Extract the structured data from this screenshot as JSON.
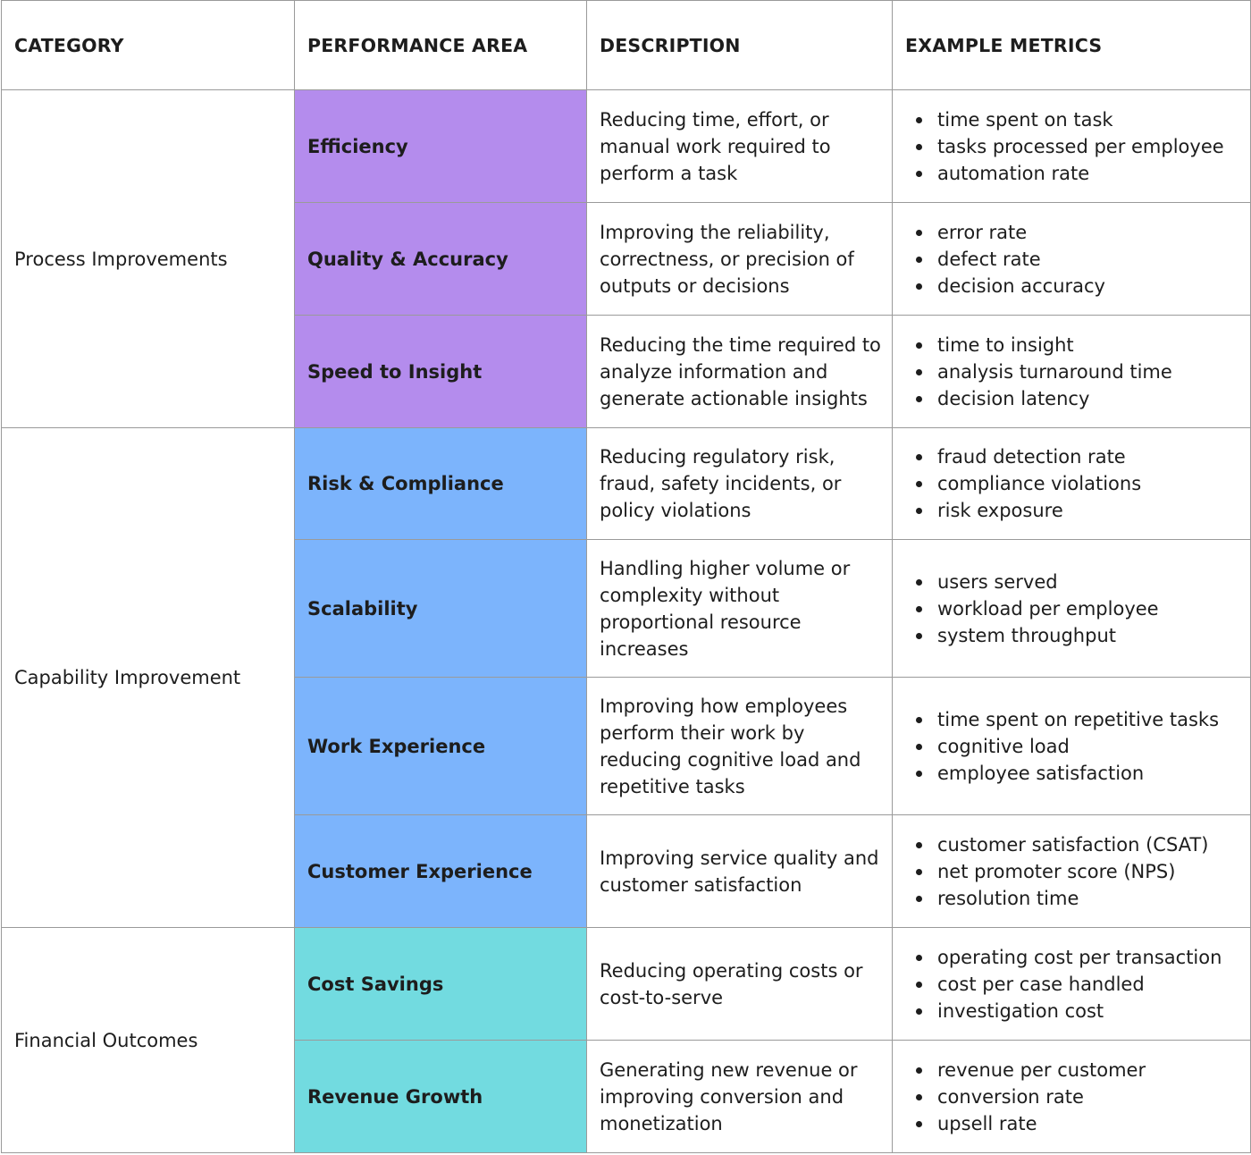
{
  "table": {
    "headers": [
      "CATEGORY",
      "PERFORMANCE AREA",
      "DESCRIPTION",
      "EXAMPLE METRICS"
    ],
    "colors": {
      "process": "#b48ced",
      "capability": "#7cb4fc",
      "financial": "#72dbe0",
      "border": "#9a9a9a"
    },
    "groups": [
      {
        "category": "Process Improvements",
        "rows": [
          {
            "area": "Efficiency",
            "description": "Reducing time, effort, or manual work required to perform a task",
            "metrics": [
              "time spent on task",
              "tasks processed per employee",
              "automation rate"
            ]
          },
          {
            "area": "Quality & Accuracy",
            "description": "Improving the reliability, correctness, or precision of outputs or decisions",
            "metrics": [
              "error rate",
              "defect rate",
              "decision accuracy"
            ]
          },
          {
            "area": "Speed to Insight",
            "description": "Reducing the time required to analyze information and generate actionable insights",
            "metrics": [
              "time to insight",
              "analysis turnaround time",
              "decision latency"
            ]
          }
        ]
      },
      {
        "category": "Capability Improvement",
        "rows": [
          {
            "area": "Risk & Compliance",
            "description": "Reducing regulatory risk, fraud, safety incidents, or policy violations",
            "metrics": [
              "fraud detection rate",
              "compliance violations",
              "risk exposure"
            ]
          },
          {
            "area": "Scalability",
            "description": "Handling higher volume or complexity without proportional resource increases",
            "metrics": [
              "users served",
              "workload per employee",
              "system throughput"
            ]
          },
          {
            "area": "Work Experience",
            "description": "Improving how employees perform their work by reducing cognitive load and repetitive tasks",
            "metrics": [
              "time spent on repetitive tasks",
              "cognitive load",
              "employee satisfaction"
            ]
          },
          {
            "area": "Customer Experience",
            "description": "Improving service quality and customer satisfaction",
            "metrics": [
              "customer satisfaction (CSAT)",
              "net promoter score (NPS)",
              "resolution time"
            ]
          }
        ]
      },
      {
        "category": "Financial Outcomes",
        "rows": [
          {
            "area": "Cost Savings",
            "description": "Reducing operating costs or cost-to-serve",
            "metrics": [
              "operating cost per transaction",
              "cost per case handled",
              "investigation cost"
            ]
          },
          {
            "area": "Revenue Growth",
            "description": "Generating new revenue or improving conversion and monetization",
            "metrics": [
              "revenue per customer",
              "conversion rate",
              "upsell rate"
            ]
          }
        ]
      }
    ]
  }
}
